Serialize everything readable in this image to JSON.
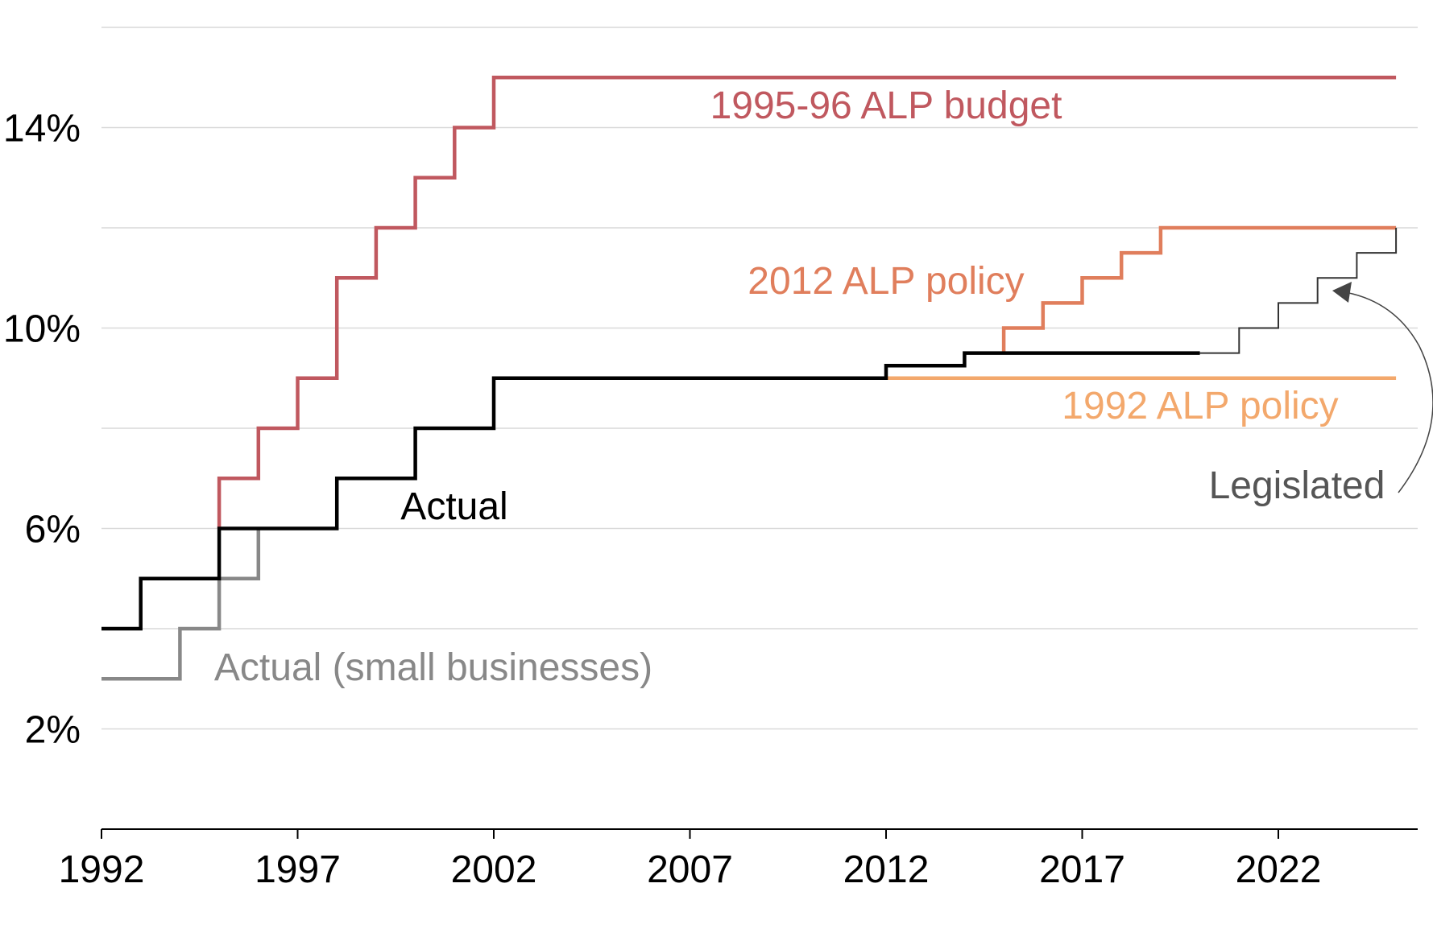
{
  "chart_data": {
    "type": "line",
    "step": true,
    "title": "",
    "xlabel": "",
    "ylabel": "",
    "xlim": [
      1992,
      2025.5
    ],
    "ylim": [
      0,
      16
    ],
    "x_ticks": [
      {
        "value": 1992,
        "label": "1992"
      },
      {
        "value": 1997,
        "label": "1997"
      },
      {
        "value": 2002,
        "label": "2002"
      },
      {
        "value": 2007,
        "label": "2007"
      },
      {
        "value": 2012,
        "label": "2012"
      },
      {
        "value": 2017,
        "label": "2017"
      },
      {
        "value": 2022,
        "label": "2022"
      }
    ],
    "y_ticks": [
      {
        "value": 2,
        "label": "2%"
      },
      {
        "value": 6,
        "label": "6%"
      },
      {
        "value": 10,
        "label": "10%"
      },
      {
        "value": 14,
        "label": "14%"
      }
    ],
    "gridlines": [
      2,
      4,
      6,
      8,
      10,
      12,
      14,
      16
    ],
    "grid": true,
    "legend": "none",
    "series": [
      {
        "name": "1995-96 ALP budget",
        "color": "#c0585f",
        "points": [
          [
            1995,
            6
          ],
          [
            1995,
            7
          ],
          [
            1996,
            7
          ],
          [
            1996,
            8
          ],
          [
            1997,
            8
          ],
          [
            1997,
            9
          ],
          [
            1998,
            9
          ],
          [
            1998,
            11
          ],
          [
            1999,
            11
          ],
          [
            1999,
            12
          ],
          [
            2000,
            12
          ],
          [
            2000,
            13
          ],
          [
            2001,
            13
          ],
          [
            2001,
            14
          ],
          [
            2002,
            14
          ],
          [
            2002,
            15
          ],
          [
            2025,
            15
          ]
        ]
      },
      {
        "name": "2012 ALP policy",
        "color": "#e07e5c",
        "points": [
          [
            2015,
            9.5
          ],
          [
            2015,
            10
          ],
          [
            2016,
            10
          ],
          [
            2016,
            10.5
          ],
          [
            2017,
            10.5
          ],
          [
            2017,
            11
          ],
          [
            2018,
            11
          ],
          [
            2018,
            11.5
          ],
          [
            2019,
            11.5
          ],
          [
            2019,
            12
          ],
          [
            2025,
            12
          ]
        ]
      },
      {
        "name": "1992 ALP policy",
        "color": "#f3a86c",
        "points": [
          [
            2012,
            9
          ],
          [
            2025,
            9
          ]
        ]
      },
      {
        "name": "Actual (small businesses)",
        "color": "#888888",
        "points": [
          [
            1992,
            3
          ],
          [
            1994,
            3
          ],
          [
            1994,
            4
          ],
          [
            1995,
            4
          ],
          [
            1995,
            5
          ],
          [
            1996,
            5
          ],
          [
            1996,
            6
          ]
        ]
      },
      {
        "name": "Actual",
        "color": "#000000",
        "points": [
          [
            1992,
            4
          ],
          [
            1993,
            4
          ],
          [
            1993,
            5
          ],
          [
            1995,
            5
          ],
          [
            1995,
            6
          ],
          [
            1998,
            6
          ],
          [
            1998,
            7
          ],
          [
            2000,
            7
          ],
          [
            2000,
            8
          ],
          [
            2002,
            8
          ],
          [
            2002,
            9
          ],
          [
            2012,
            9
          ],
          [
            2012,
            9.25
          ],
          [
            2014,
            9.25
          ],
          [
            2014,
            9.5
          ],
          [
            2020,
            9.5
          ]
        ]
      },
      {
        "name": "Legislated",
        "color": "#333333",
        "points": [
          [
            2020,
            9.5
          ],
          [
            2021,
            9.5
          ],
          [
            2021,
            10
          ],
          [
            2022,
            10
          ],
          [
            2022,
            10.5
          ],
          [
            2023,
            10.5
          ],
          [
            2023,
            11
          ],
          [
            2024,
            11
          ],
          [
            2024,
            11.5
          ],
          [
            2025,
            11.5
          ],
          [
            2025,
            12
          ]
        ]
      }
    ]
  },
  "labels": [
    {
      "text": "1995-96 ALP budget",
      "color": "#c0585f"
    },
    {
      "text": "2012 ALP policy",
      "color": "#e07e5c"
    },
    {
      "text": "1992 ALP policy",
      "color": "#f3a86c"
    },
    {
      "text": "Actual",
      "color": "#000000"
    },
    {
      "text": "Actual (small businesses)",
      "color": "#888888"
    },
    {
      "text": "Legislated",
      "color": "#555555"
    }
  ]
}
